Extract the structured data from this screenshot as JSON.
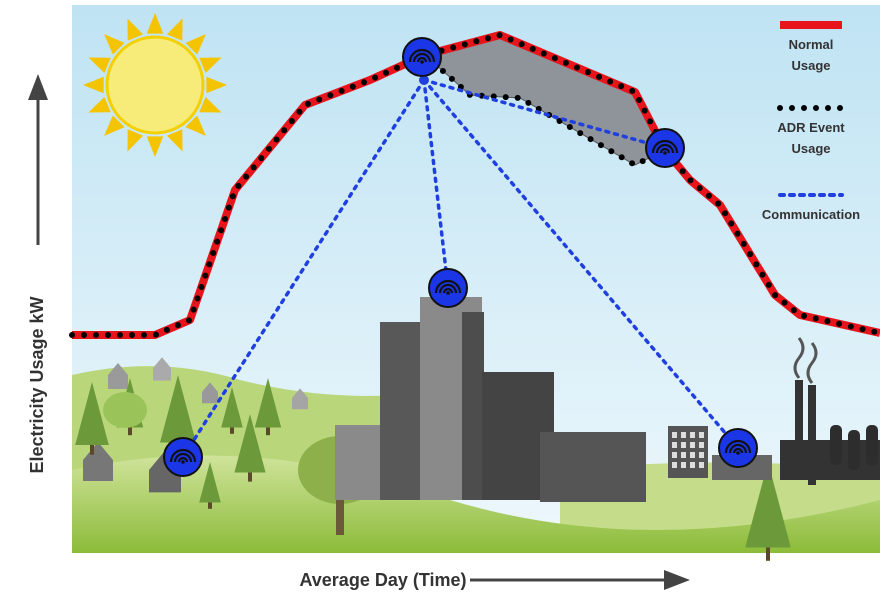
{
  "axes": {
    "y_label": "Electricity Usage kW",
    "x_label": "Average Day (Time)"
  },
  "legend": [
    {
      "lines": [
        "Normal",
        "Usage"
      ]
    },
    {
      "lines": [
        "ADR Event",
        "Usage"
      ]
    },
    {
      "lines": [
        "Communication"
      ]
    }
  ]
}
